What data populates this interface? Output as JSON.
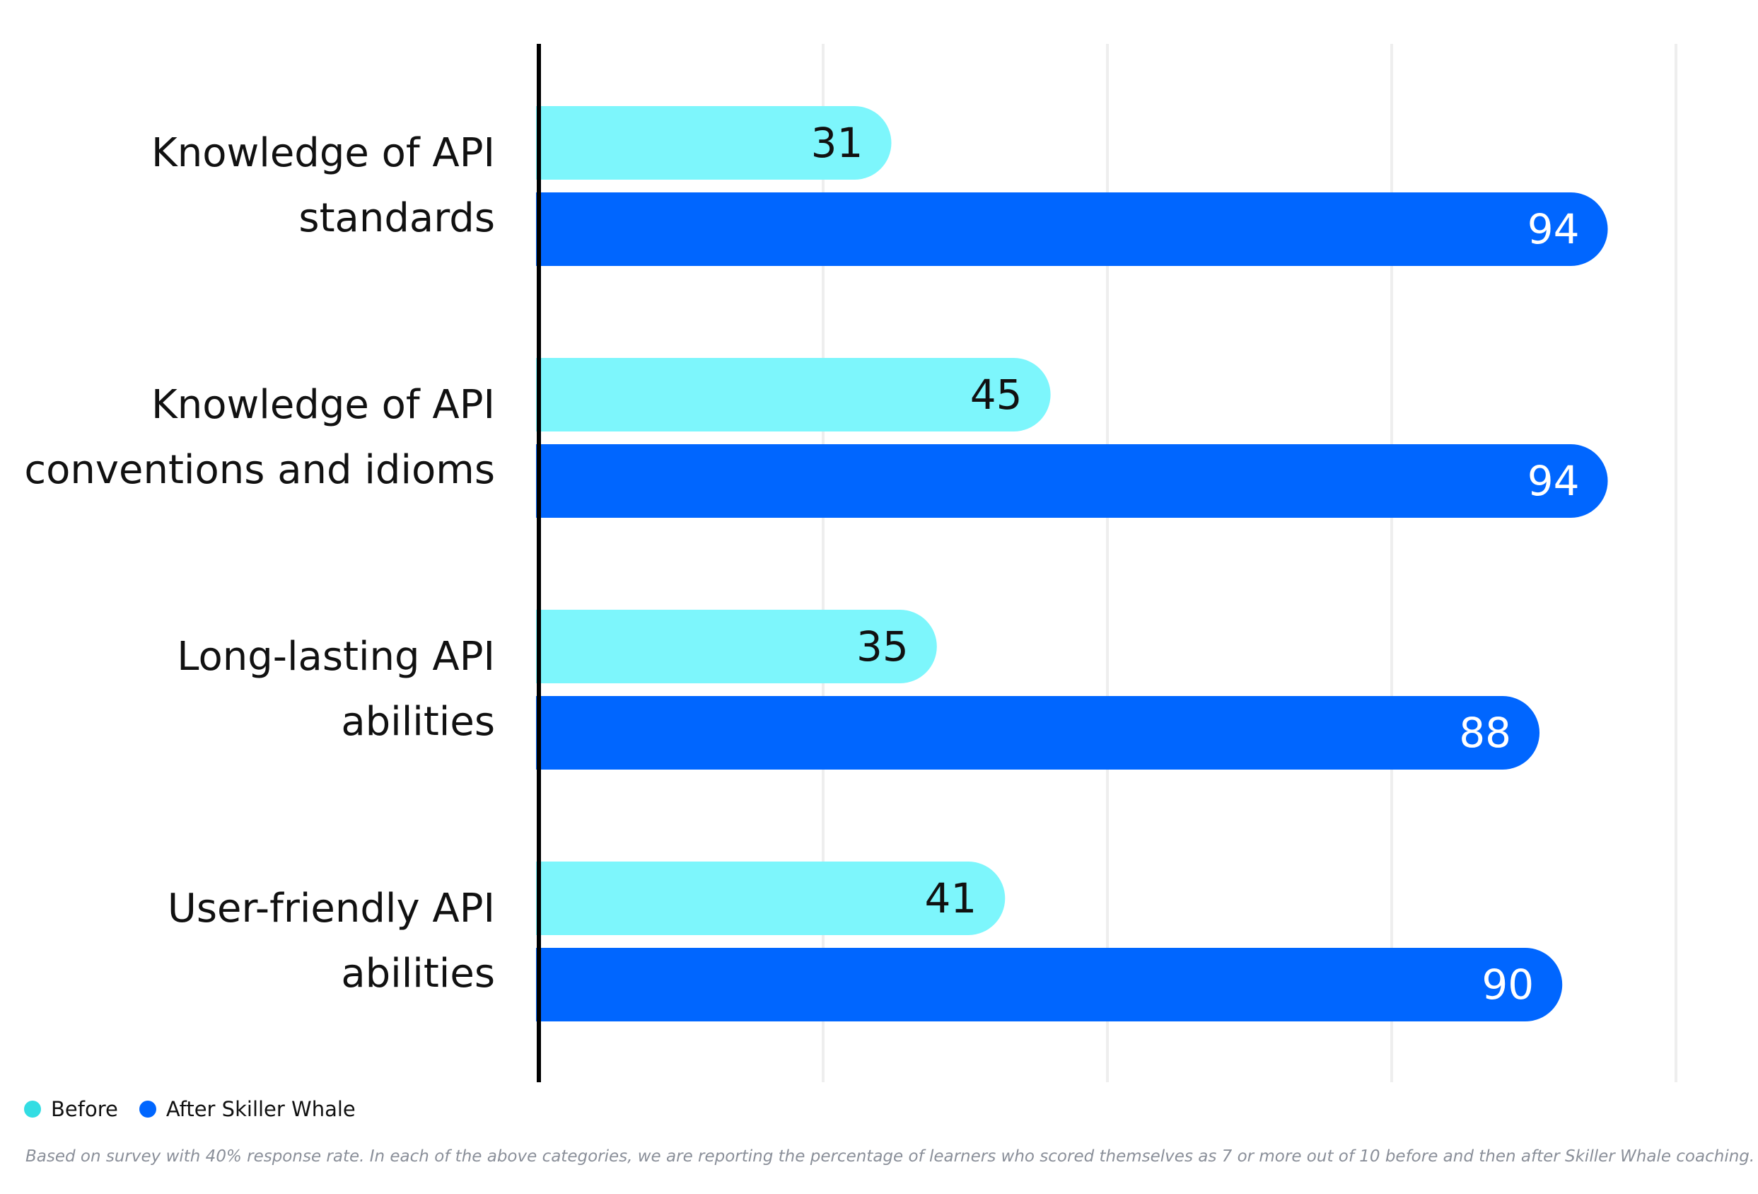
{
  "chart_data": {
    "type": "bar",
    "orientation": "horizontal",
    "title": "",
    "xlabel": "",
    "ylabel": "",
    "xlim": [
      0,
      100
    ],
    "grid": true,
    "gridlines": [
      25,
      50,
      75,
      100
    ],
    "categories": [
      [
        "Knowledge of API",
        "standards"
      ],
      [
        "Knowledge of API",
        "conventions and idioms"
      ],
      [
        "Long-lasting API",
        "abilities"
      ],
      [
        "User-friendly API",
        "abilities"
      ]
    ],
    "series": [
      {
        "name": "Before",
        "values": [
          31,
          45,
          35,
          41
        ],
        "color": "#7df6fc",
        "label_color": "#111111"
      },
      {
        "name": "After Skiller Whale",
        "values": [
          94,
          94,
          88,
          90
        ],
        "color": "#0066ff",
        "label_color": "#ffffff"
      }
    ],
    "legend": {
      "position": "bottom-left",
      "items": [
        {
          "label": "Before",
          "color": "#33dde3"
        },
        {
          "label": "After Skiller Whale",
          "color": "#0066ff"
        }
      ]
    }
  },
  "footnote": "Based on survey with 40% response rate. In each of the above categories, we are reporting the percentage of learners who scored themselves as 7 or more out of 10 before and then after Skiller Whale coaching."
}
